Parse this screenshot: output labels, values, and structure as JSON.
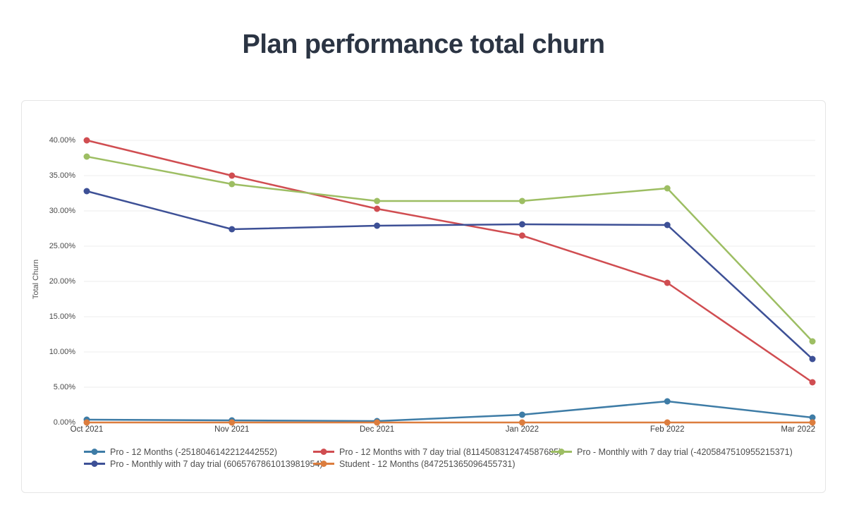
{
  "page": {
    "title": "Plan performance total churn"
  },
  "chart_data": {
    "type": "line",
    "title": "Plan performance total churn",
    "xlabel": "",
    "ylabel": "Total Churn",
    "categories": [
      "Oct 2021",
      "Nov 2021",
      "Dec 2021",
      "Jan 2022",
      "Feb 2022",
      "Mar 2022"
    ],
    "ylim": [
      0,
      40
    ],
    "ytick_step": 5,
    "yticks": [
      "0.00%",
      "5.00%",
      "10.00%",
      "15.00%",
      "20.00%",
      "25.00%",
      "30.00%",
      "35.00%",
      "40.00%"
    ],
    "grid": true,
    "legend_position": "bottom",
    "series": [
      {
        "name": "Pro - 12 Months (-2518046142212442552)",
        "color": "#3e7ca6",
        "values": [
          0.4,
          0.3,
          0.2,
          1.1,
          3.0,
          0.7
        ]
      },
      {
        "name": "Pro - 12 Months with 7 day trial (8114508312474587685)",
        "color": "#d04d51",
        "values": [
          40.0,
          35.0,
          30.3,
          26.5,
          19.8,
          5.7
        ]
      },
      {
        "name": "Pro - Monthly with 7 day trial (-4205847510955215371)",
        "color": "#9dbe63",
        "values": [
          37.7,
          33.8,
          31.4,
          31.4,
          33.2,
          11.5
        ]
      },
      {
        "name": "Pro - Monthly with 7 day trial (6065767861013981954)",
        "color": "#3d5096",
        "values": [
          32.8,
          27.4,
          27.9,
          28.1,
          28.0,
          9.0
        ]
      },
      {
        "name": "Student - 12 Months (847251365096455731)",
        "color": "#dc7d3e",
        "values": [
          0,
          0,
          0,
          0,
          0,
          0
        ]
      }
    ]
  }
}
